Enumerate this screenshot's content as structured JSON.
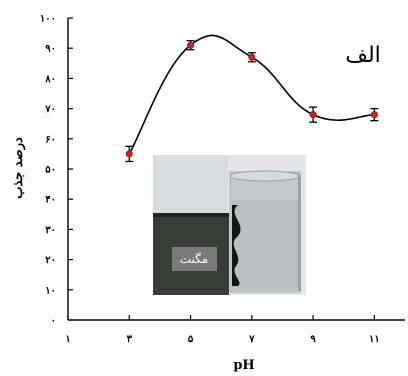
{
  "chart_data": {
    "type": "line",
    "panel_label": "الف",
    "xlabel": "pH",
    "ylabel": "درصد جذب",
    "x_ticks": [
      1,
      3,
      5,
      7,
      9,
      11
    ],
    "x_tick_labels": [
      "۱",
      "۳",
      "۵",
      "۷",
      "۹",
      "۱۱"
    ],
    "y_ticks": [
      0,
      10,
      20,
      30,
      40,
      50,
      60,
      70,
      80,
      90,
      100
    ],
    "y_tick_labels": [
      "۰",
      "۱۰",
      "۲۰",
      "۳۰",
      "۴۰",
      "۵۰",
      "۶۰",
      "۷۰",
      "۸۰",
      "۹۰",
      "۱۰۰"
    ],
    "xlim": [
      1,
      12
    ],
    "ylim": [
      0,
      100
    ],
    "grid": false,
    "marker_color": "#d62020",
    "line_color": "#000000",
    "series": [
      {
        "x": [
          3,
          5,
          7,
          9,
          11
        ],
        "y": [
          55,
          91,
          87,
          68,
          68
        ],
        "error": [
          2.5,
          1.5,
          1.5,
          2.5,
          2.0
        ]
      }
    ],
    "inset": {
      "label": "مگنت"
    }
  }
}
